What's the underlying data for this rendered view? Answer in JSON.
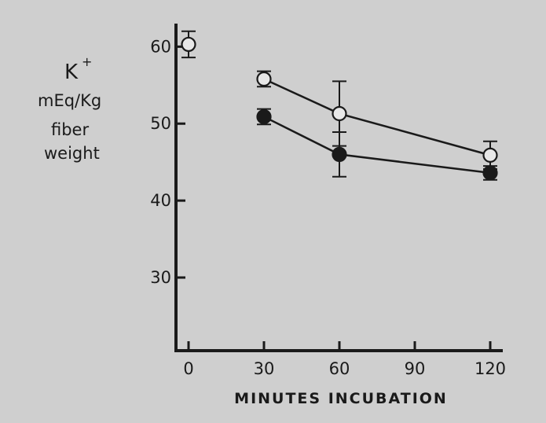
{
  "chart_data": {
    "type": "line",
    "title": "",
    "xlabel": "MINUTES INCUBATION",
    "ylabel_lines": [
      "K",
      "+",
      "mEq/Kg",
      "fiber",
      "weight"
    ],
    "xlim": [
      -5,
      125
    ],
    "ylim": [
      20.5,
      63
    ],
    "x_ticks": [
      0,
      30,
      60,
      90,
      120
    ],
    "y_ticks": [
      30,
      40,
      50,
      60
    ],
    "grid": false,
    "legend": "none",
    "series": [
      {
        "marker": "open-circle",
        "x": [
          0,
          30,
          60,
          120
        ],
        "y": [
          60.3,
          55.8,
          51.3,
          45.9
        ],
        "err": [
          1.7,
          1.0,
          4.2,
          1.8
        ],
        "connect_from_index": 1
      },
      {
        "marker": "filled-circle",
        "x": [
          30,
          60,
          120
        ],
        "y": [
          50.9,
          46.0,
          43.6
        ],
        "err": [
          1.0,
          2.9,
          0.9
        ],
        "connect_from_index": 0
      }
    ]
  }
}
